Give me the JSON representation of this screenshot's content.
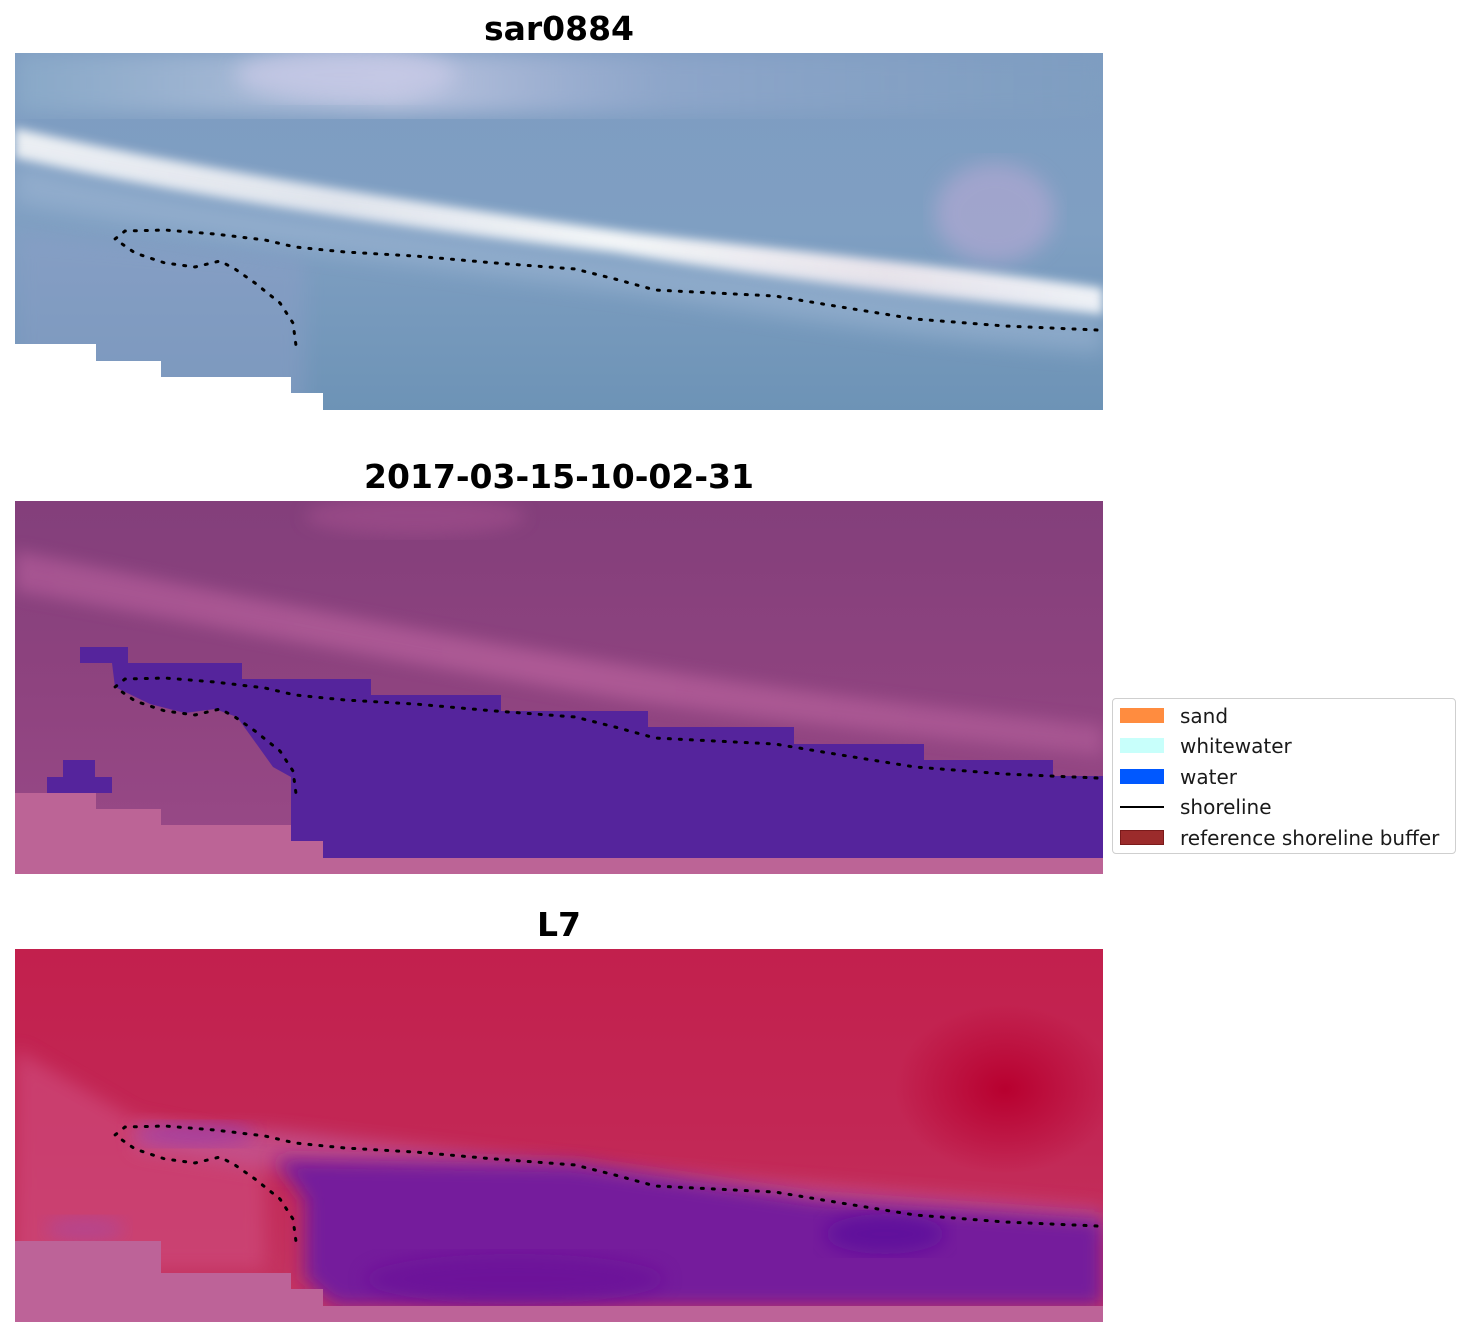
{
  "panels": [
    {
      "title": "sar0884"
    },
    {
      "title": "2017-03-15-10-02-31"
    },
    {
      "title": "L7"
    }
  ],
  "legend": {
    "items": [
      {
        "label": "sand",
        "color": "#ff8c3f",
        "kind": "patch"
      },
      {
        "label": "whitewater",
        "color": "#c8fffb",
        "kind": "patch"
      },
      {
        "label": "water",
        "color": "#0058ff",
        "kind": "patch"
      },
      {
        "label": "shoreline",
        "color": "#000000",
        "kind": "line"
      },
      {
        "label": "reference shoreline buffer",
        "color": "#9b2b2b",
        "kind": "patch"
      }
    ]
  }
}
